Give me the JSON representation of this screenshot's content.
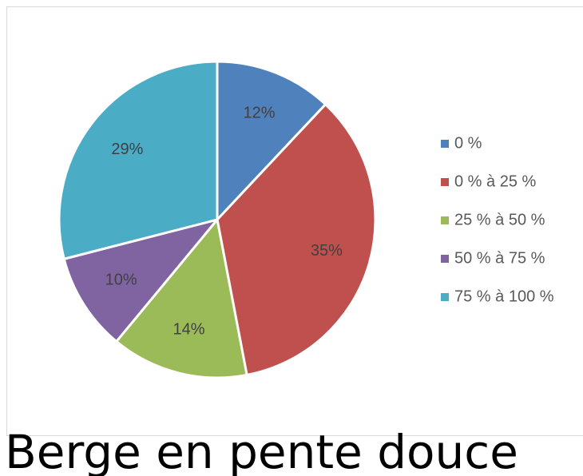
{
  "chart_data": {
    "type": "pie",
    "categories": [
      "0 %",
      "0 % à 25 %",
      "25 % à 50 %",
      "50 % à 75 %",
      "75 % à 100 %"
    ],
    "values": [
      12,
      35,
      14,
      10,
      29
    ],
    "value_labels": [
      "12%",
      "35%",
      "14%",
      "10%",
      "29%"
    ],
    "colors": [
      "#4f81bd",
      "#c0504d",
      "#9bbb59",
      "#8064a2",
      "#4bacc6"
    ],
    "legend": "right"
  },
  "caption": "Berge en pente douce"
}
